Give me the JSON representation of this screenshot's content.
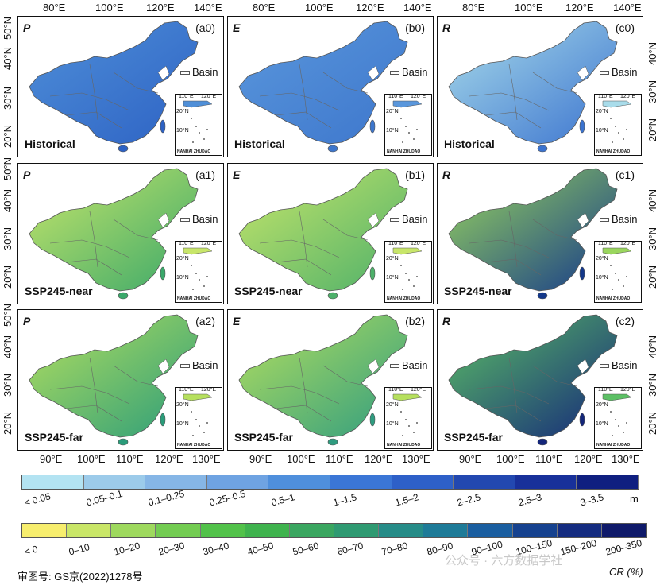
{
  "top_lon_ticks": [
    "80°E",
    "100°E",
    "120°E",
    "140°E",
    "80°E",
    "100°E",
    "120°E",
    "140°E",
    "80°E",
    "100°E",
    "120°E",
    "140°E"
  ],
  "bottom_lon_ticks": [
    "90°E",
    "100°E",
    "110°E",
    "120°E",
    "130°E",
    "90°E",
    "100°E",
    "110°E",
    "120°E",
    "130°E",
    "90°E",
    "100°E",
    "110°E",
    "120°E",
    "130°E"
  ],
  "left_lat_ticks_top": [
    "50°N",
    "40°N",
    "30°N",
    "20°N"
  ],
  "left_lat_ticks_other": [
    "50°N",
    "40°N",
    "30°N",
    "20°N"
  ],
  "right_lat_ticks_top": [
    "40°N",
    "30°N",
    "20°N"
  ],
  "right_lat_ticks_other": [
    "40°N",
    "30°N",
    "20°N"
  ],
  "panels": [
    {
      "var": "P",
      "tag": "(a0)",
      "scenario": "Historical",
      "fill": "#4f8fd8",
      "fill2": "#2d62c4"
    },
    {
      "var": "E",
      "tag": "(b0)",
      "scenario": "Historical",
      "fill": "#5a97dc",
      "fill2": "#3d76cc"
    },
    {
      "var": "R",
      "tag": "(c0)",
      "scenario": "Historical",
      "fill": "#a9dcea",
      "fill2": "#3b73cf"
    },
    {
      "var": "P",
      "tag": "(a1)",
      "scenario": "SSP245-near",
      "fill": "#c8e66a",
      "fill2": "#3aa86a"
    },
    {
      "var": "E",
      "tag": "(b1)",
      "scenario": "SSP245-near",
      "fill": "#c8e66a",
      "fill2": "#4db06a"
    },
    {
      "var": "R",
      "tag": "(c1)",
      "scenario": "SSP245-near",
      "fill": "#9ad65e",
      "fill2": "#14388a"
    },
    {
      "var": "P",
      "tag": "(a2)",
      "scenario": "SSP245-far",
      "fill": "#b6e05e",
      "fill2": "#2a9c7a"
    },
    {
      "var": "E",
      "tag": "(b2)",
      "scenario": "SSP245-far",
      "fill": "#b6e05e",
      "fill2": "#2f9c80"
    },
    {
      "var": "R",
      "tag": "(c2)",
      "scenario": "SSP245-far",
      "fill": "#5cc065",
      "fill2": "#14267a"
    }
  ],
  "basin_label": "Basin",
  "inset": {
    "lon1": "110°E",
    "lon2": "120°E",
    "lat1": "20°N",
    "lat2": "10°N",
    "name": "NANHAI ZHUDAO"
  },
  "legend_m": {
    "unit": "m",
    "labels": [
      "< 0.05",
      "0.05–0.1",
      "0.1–0.25",
      "0.25–0.5",
      "0.5–1",
      "1–1.5",
      "1.5–2",
      "2–2.5",
      "2.5–3",
      "3–3.5"
    ],
    "colors": [
      "#b3e3f2",
      "#9ccbea",
      "#86b6e6",
      "#6fa3e2",
      "#4f8fdc",
      "#3b76d6",
      "#2e60c8",
      "#2248b0",
      "#18309a",
      "#0f1f80"
    ]
  },
  "legend_cr": {
    "unit": "CR (%)",
    "labels": [
      "< 0",
      "0–10",
      "10–20",
      "20–30",
      "30–40",
      "40–50",
      "50–60",
      "60–70",
      "70–80",
      "80–90",
      "90–100",
      "100–150",
      "150–200",
      "200–350"
    ],
    "colors": [
      "#f7ee6e",
      "#c9e668",
      "#9ed95e",
      "#73cc52",
      "#52c24a",
      "#3fb34e",
      "#3aa660",
      "#2f9a72",
      "#268c88",
      "#1e7b98",
      "#1a5ea0",
      "#16428f",
      "#142c80",
      "#0f1a6a"
    ]
  },
  "footer": {
    "approval": "审图号: GS京(2022)1278号"
  },
  "watermark": "公众号 · 六方数据学社"
}
